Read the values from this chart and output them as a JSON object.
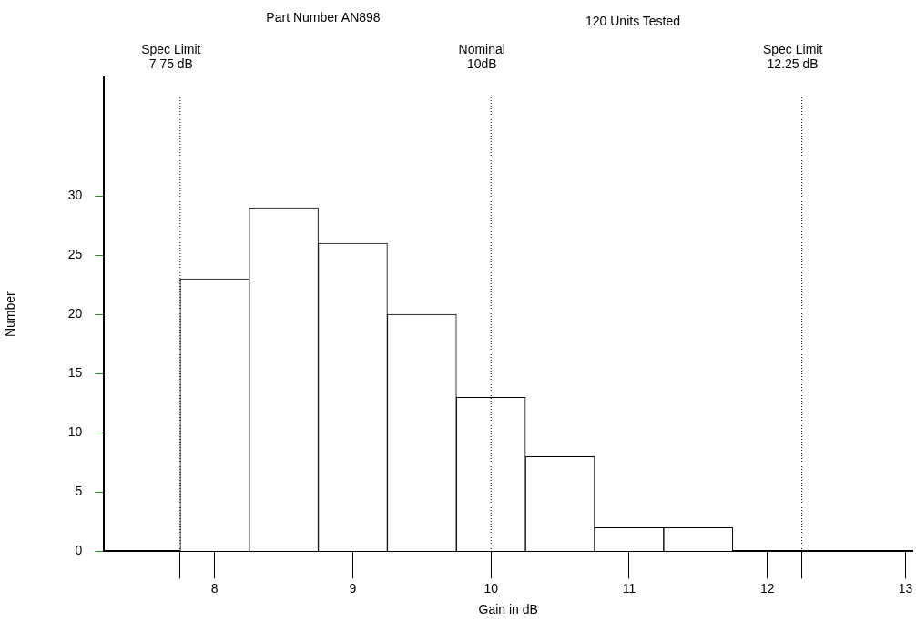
{
  "chart_data": {
    "type": "histogram",
    "title": "Part Number AN898",
    "subtitle": "120 Units Tested",
    "xlabel": "Gain in dB",
    "ylabel": "Number",
    "bins": [
      7.75,
      8.25,
      8.75,
      9.25,
      9.75,
      10.25,
      10.75,
      11.25,
      11.75
    ],
    "values": [
      23,
      29,
      26,
      20,
      13,
      8,
      2,
      2
    ],
    "color": "#ffffff",
    "xlim": [
      7.2,
      13.05
    ],
    "xticks": [
      {
        "value": 7.75,
        "label": null
      },
      8,
      9,
      10,
      11,
      12,
      {
        "value": 12.25,
        "label": null
      },
      13
    ],
    "ylim": [
      0,
      40
    ],
    "yticks": [
      0,
      5,
      10,
      15,
      20,
      25,
      30
    ],
    "grid": false,
    "legend": false,
    "ref_lines": [
      {
        "axis": "x",
        "value": 7.75,
        "label": "Spec Limit\n7.75 dB",
        "line_style": "dotted"
      },
      {
        "axis": "x",
        "value": 10,
        "label": "Nominal\n10dB",
        "line_style": "dotted"
      },
      {
        "axis": "x",
        "value": 12.25,
        "label": "Spec Limit\n12.25 dB",
        "line_style": "dotted"
      }
    ]
  }
}
